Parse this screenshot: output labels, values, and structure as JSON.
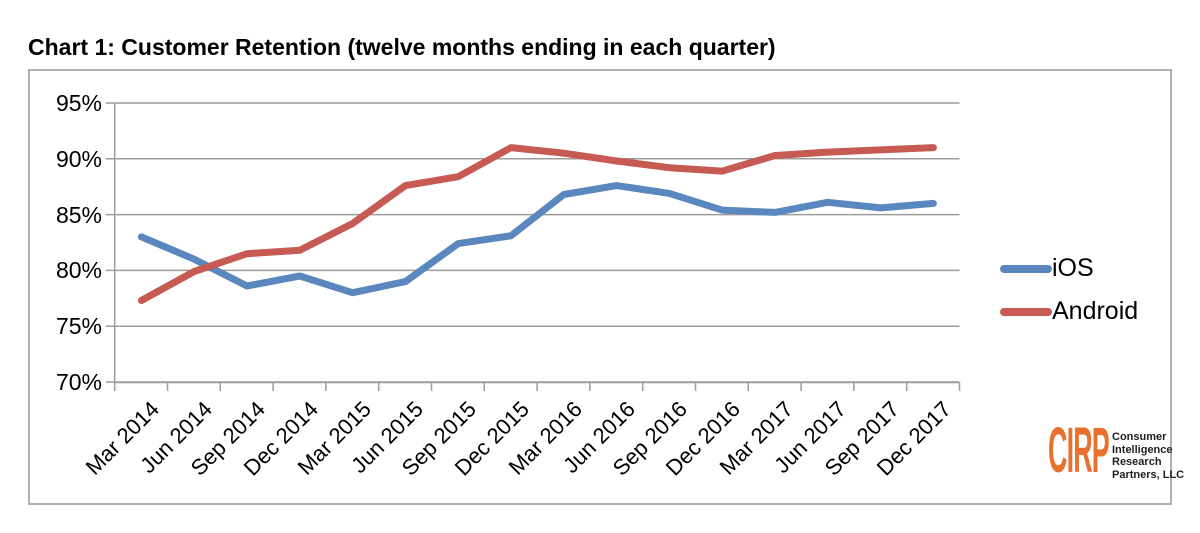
{
  "chart_data": {
    "type": "line",
    "title": "Chart 1: Customer Retention (twelve months ending in each quarter)",
    "categories": [
      "Mar 2014",
      "Jun 2014",
      "Sep 2014",
      "Dec 2014",
      "Mar 2015",
      "Jun 2015",
      "Sep 2015",
      "Dec 2015",
      "Mar 2016",
      "Jun 2016",
      "Sep 2016",
      "Dec 2016",
      "Mar 2017",
      "Jun 2017",
      "Sep 2017",
      "Dec 2017"
    ],
    "series": [
      {
        "name": "iOS",
        "color": "#5a87be",
        "values": [
          83,
          81,
          78.6,
          79.5,
          78,
          79,
          82.4,
          83.1,
          86.8,
          87.6,
          86.9,
          85.4,
          85.2,
          86.1,
          85.6,
          86
        ]
      },
      {
        "name": "Android",
        "color": "#c75b54",
        "values": [
          77.3,
          79.9,
          81.5,
          81.8,
          84.2,
          87.6,
          88.4,
          91,
          90.5,
          89.8,
          89.2,
          88.9,
          90.3,
          90.6,
          90.8,
          91
        ]
      }
    ],
    "ylim": [
      70,
      95
    ],
    "y_ticks": [
      95,
      90,
      85,
      80,
      75,
      70
    ],
    "y_tick_labels": [
      "95%",
      "90%",
      "85%",
      "80%",
      "75%",
      "70%"
    ],
    "grid": true,
    "legend_position": "right"
  },
  "logo": {
    "brand": "CIRP",
    "line1": "Consumer",
    "line2": "Intelligence",
    "line3": "Research",
    "line4": "Partners, LLC",
    "orange": "#e8712f"
  },
  "colors": {
    "grid": "#9c9c9c",
    "box_border": "#b0b0b0"
  }
}
